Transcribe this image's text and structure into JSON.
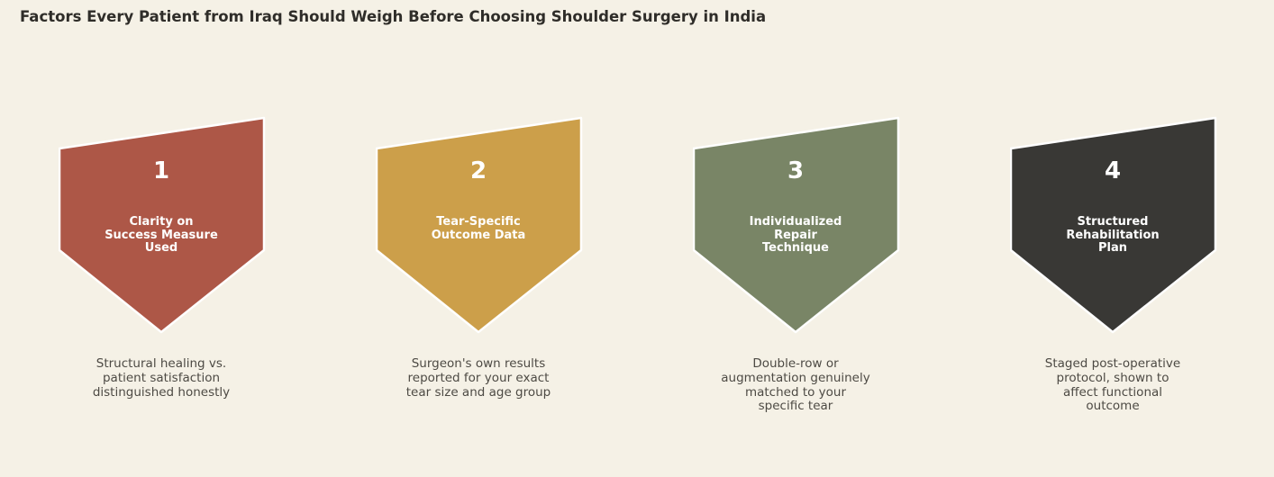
{
  "title": "Factors Every Patient from Iraq Should Weigh Before Choosing Shoulder Surgery in India",
  "factors": [
    {
      "number": "1",
      "heading": "Clarity on\nSuccess Measure\nUsed",
      "description": "Structural healing vs.\npatient satisfaction\ndistinguished honestly",
      "color": "#ad5747"
    },
    {
      "number": "2",
      "heading": "Tear-Specific\nOutcome Data",
      "description": "Surgeon's own results\nreported for your exact\ntear size and age group",
      "color": "#cc9f4a"
    },
    {
      "number": "3",
      "heading": "Individualized\nRepair\nTechnique",
      "description": "Double-row or\naugmentation genuinely\nmatched to your\nspecific tear",
      "color": "#798566"
    },
    {
      "number": "4",
      "heading": "Structured\nRehabilitation\nPlan",
      "description": "Staged post-operative\nprotocol, shown to\naffect functional\noutcome",
      "color": "#393835"
    }
  ]
}
